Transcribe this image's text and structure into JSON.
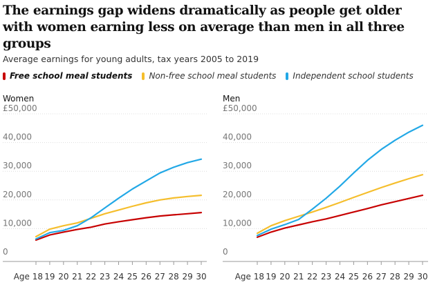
{
  "headline": "The earnings gap widens dramatically as people get older with women earning less on average than men in all three groups",
  "subtitle": "Average earnings for young adults, tax years 2005 to 2019",
  "legend": [
    {
      "label": "Free school meal students",
      "color": "#c70000"
    },
    {
      "label": "Non-free school meal students",
      "color": "#f5be2c"
    },
    {
      "label": "Independent school students",
      "color": "#22a8e6"
    }
  ],
  "chart_data": [
    {
      "type": "line",
      "title": "Women",
      "x": [
        18,
        19,
        20,
        21,
        22,
        23,
        24,
        25,
        26,
        27,
        28,
        29,
        30
      ],
      "x_tick_labels": [
        "Age 18",
        "19",
        "20",
        "21",
        "22",
        "23",
        "24",
        "25",
        "26",
        "27",
        "28",
        "29",
        "30"
      ],
      "y_tick_labels": [
        "0",
        "10,000",
        "20,000",
        "30,000",
        "40,000",
        "£50,000"
      ],
      "ylim": [
        0,
        50000
      ],
      "series": [
        {
          "name": "Free school meal students",
          "color": "#c70000",
          "values": [
            6000,
            7800,
            8800,
            9700,
            10500,
            11600,
            12400,
            13100,
            13800,
            14400,
            14800,
            15200,
            15600
          ]
        },
        {
          "name": "Non-free school meal students",
          "color": "#f5be2c",
          "values": [
            7200,
            9800,
            11000,
            12000,
            13600,
            15200,
            16500,
            17800,
            19000,
            20000,
            20700,
            21200,
            21600
          ]
        },
        {
          "name": "Independent school students",
          "color": "#22a8e6",
          "values": [
            6400,
            8600,
            9400,
            11000,
            13800,
            17200,
            20600,
            23800,
            26600,
            29400,
            31400,
            33000,
            34200
          ]
        }
      ]
    },
    {
      "type": "line",
      "title": "Men",
      "x": [
        18,
        19,
        20,
        21,
        22,
        23,
        24,
        25,
        26,
        27,
        28,
        29,
        30
      ],
      "x_tick_labels": [
        "Age 18",
        "19",
        "20",
        "21",
        "22",
        "23",
        "24",
        "25",
        "26",
        "27",
        "28",
        "29",
        "30"
      ],
      "y_tick_labels": [
        "0",
        "10,000",
        "20,000",
        "30,000",
        "40,000",
        "£50,000"
      ],
      "ylim": [
        0,
        50000
      ],
      "series": [
        {
          "name": "Free school meal students",
          "color": "#c70000",
          "values": [
            7000,
            8800,
            10200,
            11300,
            12400,
            13400,
            14600,
            15800,
            17000,
            18300,
            19400,
            20500,
            21600
          ]
        },
        {
          "name": "Non-free school meal students",
          "color": "#f5be2c",
          "values": [
            8400,
            11000,
            12800,
            14300,
            15800,
            17400,
            19100,
            20900,
            22600,
            24300,
            25900,
            27400,
            28800
          ]
        },
        {
          "name": "Independent school students",
          "color": "#22a8e6",
          "values": [
            7600,
            9800,
            11400,
            13200,
            16800,
            20600,
            24800,
            29400,
            33800,
            37600,
            40800,
            43600,
            46000
          ]
        }
      ]
    }
  ]
}
